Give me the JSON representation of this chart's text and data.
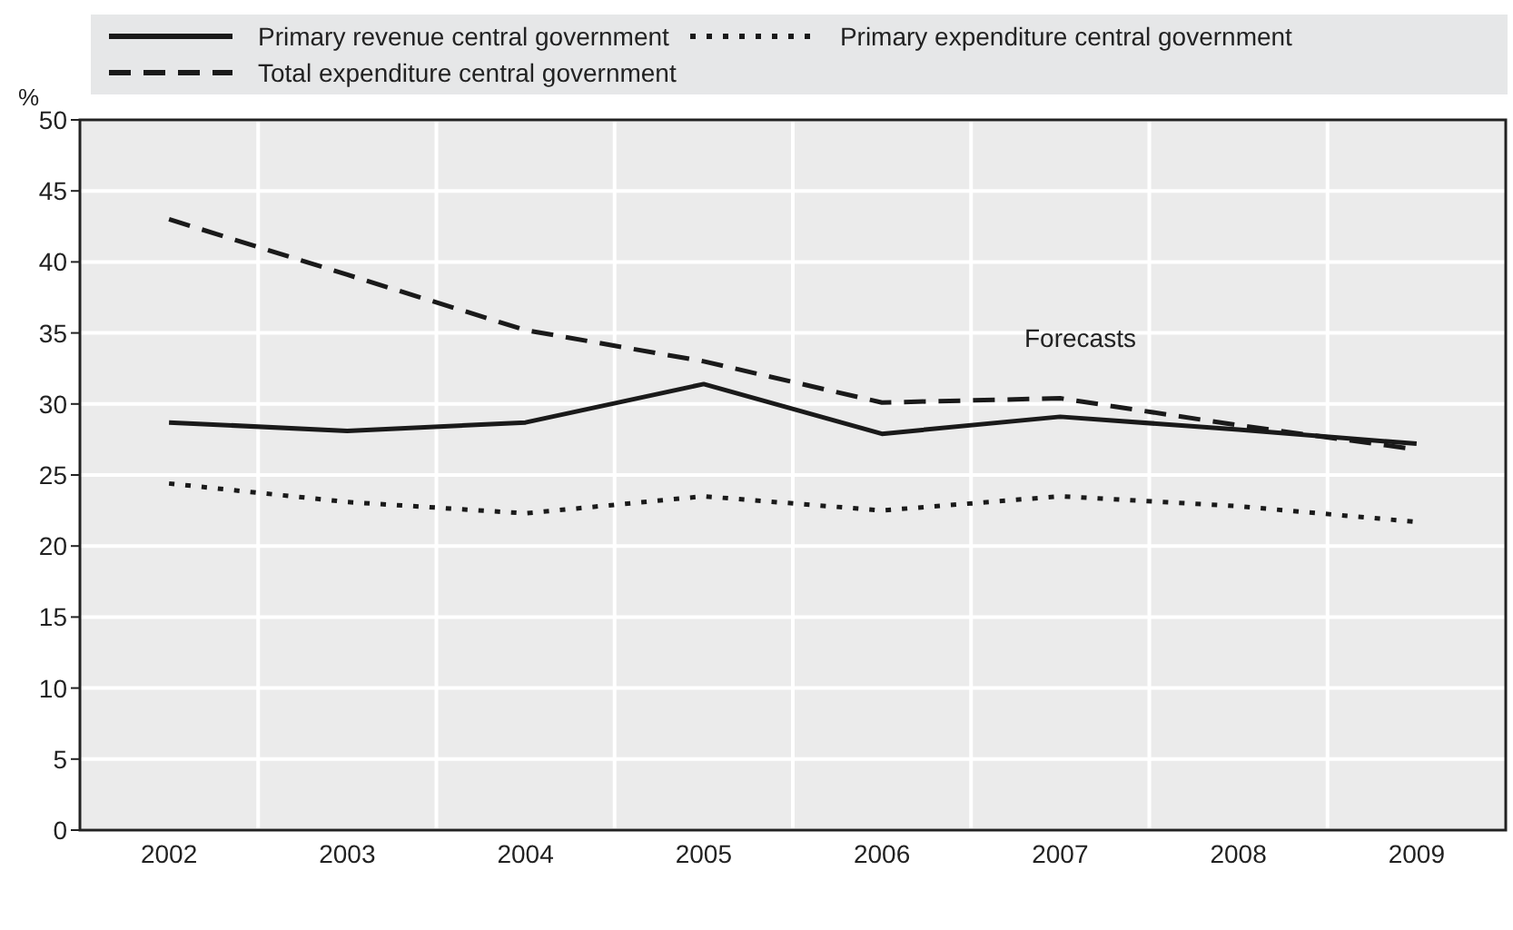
{
  "chart_data": {
    "type": "line",
    "ylabel": "%",
    "categories": [
      "2002",
      "2003",
      "2004",
      "2005",
      "2006",
      "2007",
      "2008",
      "2009"
    ],
    "series": [
      {
        "name": "Primary revenue central government",
        "color": "#1a1a1a",
        "line_style": "solid",
        "values": [
          28.7,
          28.1,
          28.7,
          31.4,
          27.9,
          29.1,
          28.2,
          27.2
        ]
      },
      {
        "name": "Primary expenditure central government",
        "color": "#1a1a1a",
        "line_style": "dotted",
        "values": [
          24.4,
          23.1,
          22.3,
          23.5,
          22.5,
          23.5,
          22.8,
          21.7
        ]
      },
      {
        "name": "Total expenditure central government",
        "color": "#1a1a1a",
        "line_style": "dashed",
        "values": [
          43.0,
          39.1,
          35.2,
          33.0,
          30.1,
          30.4,
          28.5,
          26.8
        ]
      }
    ],
    "annotations": [
      "Forecasts"
    ],
    "ylim": [
      0,
      50
    ],
    "yticks": [
      0,
      5,
      10,
      15,
      20,
      25,
      30,
      35,
      40,
      45,
      50
    ],
    "grid": true,
    "legend": "top",
    "marker": "none"
  }
}
